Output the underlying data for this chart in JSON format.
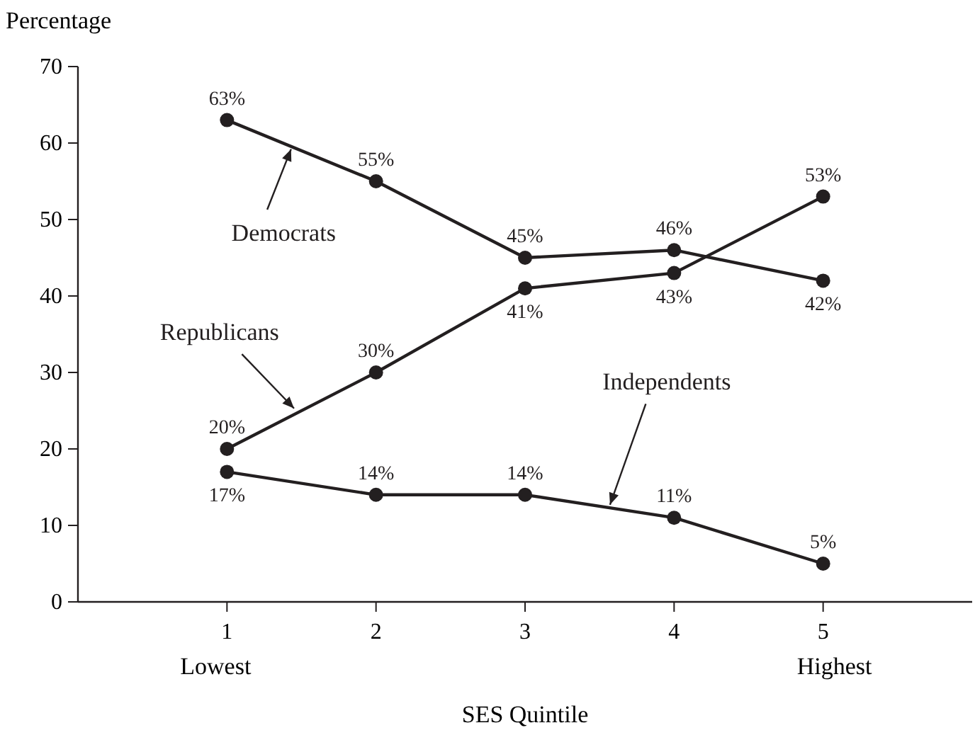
{
  "chart_data": {
    "type": "line",
    "xlabel": "SES Quintile",
    "ylabel": "Percentage",
    "xlim": [
      0,
      6
    ],
    "xticks": [
      1,
      2,
      3,
      4,
      5
    ],
    "ylim": [
      0,
      70
    ],
    "yticks": [
      0,
      10,
      20,
      30,
      40,
      50,
      60,
      70
    ],
    "x": [
      1,
      2,
      3,
      4,
      5
    ],
    "marker": "circle",
    "line_style": "solid",
    "grid": false,
    "series": [
      {
        "name": "Democrats",
        "color": "#231f20",
        "values": [
          63,
          55,
          45,
          46,
          42
        ],
        "value_labels": [
          "63%",
          "55%",
          "45%",
          "46%",
          "42%"
        ]
      },
      {
        "name": "Republicans",
        "color": "#231f20",
        "values": [
          20,
          30,
          41,
          43,
          53
        ],
        "value_labels": [
          "20%",
          "30%",
          "41%",
          "43%",
          "53%"
        ]
      },
      {
        "name": "Independents",
        "color": "#231f20",
        "values": [
          17,
          14,
          14,
          11,
          5
        ],
        "value_labels": [
          "17%",
          "14%",
          "14%",
          "11%",
          "5%"
        ]
      }
    ],
    "annotations": [
      "Lowest",
      "Highest"
    ]
  }
}
